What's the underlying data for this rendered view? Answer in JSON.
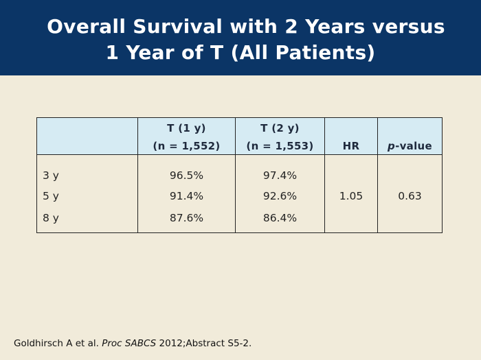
{
  "title": {
    "line1": "Overall Survival with 2 Years versus",
    "line2": "1 Year of T (All Patients)"
  },
  "table": {
    "headers": {
      "col1_line1": "T (1 y)",
      "col1_line2": "(n = 1,552)",
      "col2_line1": "T (2 y)",
      "col2_line2": "(n = 1,553)",
      "hr": "HR",
      "pvalue_p": "p",
      "pvalue_rest": "-value"
    },
    "rows": [
      {
        "label": "3 y",
        "t1": "96.5%",
        "t2": "97.4%"
      },
      {
        "label": "5 y",
        "t1": "91.4%",
        "t2": "92.6%"
      },
      {
        "label": "8 y",
        "t1": "87.6%",
        "t2": "86.4%"
      }
    ],
    "hr_value": "1.05",
    "p_value": "0.63"
  },
  "footer": {
    "author": "Goldhirsch A et al. ",
    "journal": "Proc SABCS",
    "rest": " 2012;Abstract S5-2."
  },
  "colors": {
    "title_bar": "#0b3566",
    "background": "#f1ebda",
    "header_fill": "#d6ebf3"
  }
}
